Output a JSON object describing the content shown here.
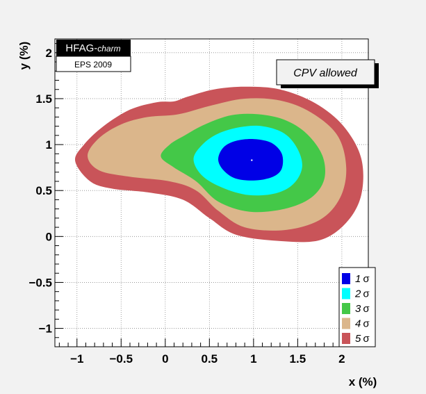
{
  "chart_data": {
    "type": "contour",
    "xlabel": "x (%)",
    "ylabel": "y (%)",
    "xlim": [
      -1.25,
      2.3
    ],
    "ylim": [
      -1.2,
      2.15
    ],
    "x_ticks": [
      "−1",
      "−0.5",
      "0",
      "0.5",
      "1",
      "1.5",
      "2"
    ],
    "x_tick_values": [
      -1,
      -0.5,
      0,
      0.5,
      1,
      1.5,
      2
    ],
    "y_ticks": [
      "−1",
      "−0.5",
      "0",
      "0.5",
      "1",
      "1.5",
      "2"
    ],
    "y_tick_values": [
      -1,
      -0.5,
      0,
      0.5,
      1,
      1.5,
      2
    ],
    "grid": true,
    "badge_title": "HFAG-",
    "badge_title_italic": "charm",
    "badge_subtitle": "EPS 2009",
    "annotation": "CPV allowed",
    "best_fit": {
      "x": 0.98,
      "y": 0.83
    },
    "legend_position": "bottom-right",
    "legend": [
      {
        "label": "1",
        "color": "#0000e6"
      },
      {
        "label": "2",
        "color": "#00ffff"
      },
      {
        "label": "3",
        "color": "#44c848"
      },
      {
        "label": "4",
        "color": "#dbb68b"
      },
      {
        "label": "5",
        "color": "#c95459"
      }
    ],
    "sigma_symbol": "σ",
    "contours": [
      {
        "level": "5σ",
        "color": "#c95459",
        "points": [
          [
            -1.02,
            0.82
          ],
          [
            -0.92,
            1.0
          ],
          [
            -0.7,
            1.2
          ],
          [
            -0.4,
            1.38
          ],
          [
            -0.1,
            1.46
          ],
          [
            0.1,
            1.47
          ],
          [
            0.25,
            1.52
          ],
          [
            0.55,
            1.6
          ],
          [
            0.9,
            1.63
          ],
          [
            1.3,
            1.6
          ],
          [
            1.7,
            1.45
          ],
          [
            2.02,
            1.2
          ],
          [
            2.22,
            0.85
          ],
          [
            2.22,
            0.45
          ],
          [
            2.05,
            0.15
          ],
          [
            1.75,
            -0.04
          ],
          [
            1.3,
            -0.05
          ],
          [
            0.8,
            0.02
          ],
          [
            0.5,
            0.2
          ],
          [
            0.2,
            0.4
          ],
          [
            -0.2,
            0.48
          ],
          [
            -0.6,
            0.52
          ],
          [
            -0.85,
            0.6
          ]
        ]
      },
      {
        "level": "4σ",
        "color": "#dbb68b",
        "points": [
          [
            -0.88,
            0.88
          ],
          [
            -0.75,
            1.07
          ],
          [
            -0.5,
            1.22
          ],
          [
            -0.2,
            1.3
          ],
          [
            0.15,
            1.33
          ],
          [
            0.5,
            1.42
          ],
          [
            0.9,
            1.5
          ],
          [
            1.3,
            1.48
          ],
          [
            1.65,
            1.35
          ],
          [
            1.95,
            1.1
          ],
          [
            2.05,
            0.75
          ],
          [
            1.98,
            0.42
          ],
          [
            1.75,
            0.18
          ],
          [
            1.35,
            0.07
          ],
          [
            0.9,
            0.1
          ],
          [
            0.6,
            0.28
          ],
          [
            0.35,
            0.5
          ],
          [
            0.05,
            0.6
          ],
          [
            -0.4,
            0.65
          ],
          [
            -0.75,
            0.72
          ]
        ]
      },
      {
        "level": "3σ",
        "color": "#44c848",
        "points": [
          [
            -0.05,
            0.87
          ],
          [
            0.05,
            1.0
          ],
          [
            0.22,
            1.1
          ],
          [
            0.45,
            1.22
          ],
          [
            0.75,
            1.32
          ],
          [
            1.05,
            1.33
          ],
          [
            1.35,
            1.27
          ],
          [
            1.6,
            1.12
          ],
          [
            1.78,
            0.88
          ],
          [
            1.8,
            0.62
          ],
          [
            1.65,
            0.42
          ],
          [
            1.35,
            0.3
          ],
          [
            0.95,
            0.27
          ],
          [
            0.6,
            0.38
          ],
          [
            0.35,
            0.6
          ],
          [
            0.1,
            0.75
          ]
        ]
      },
      {
        "level": "2σ",
        "color": "#00ffff",
        "points": [
          [
            0.32,
            0.84
          ],
          [
            0.42,
            1.0
          ],
          [
            0.6,
            1.12
          ],
          [
            0.85,
            1.19
          ],
          [
            1.1,
            1.2
          ],
          [
            1.35,
            1.12
          ],
          [
            1.5,
            0.95
          ],
          [
            1.55,
            0.75
          ],
          [
            1.45,
            0.57
          ],
          [
            1.25,
            0.47
          ],
          [
            0.95,
            0.45
          ],
          [
            0.65,
            0.53
          ],
          [
            0.42,
            0.66
          ]
        ]
      },
      {
        "level": "1σ",
        "color": "#0000e6",
        "points": [
          [
            0.6,
            0.84
          ],
          [
            0.66,
            0.97
          ],
          [
            0.8,
            1.04
          ],
          [
            1.0,
            1.06
          ],
          [
            1.2,
            1.02
          ],
          [
            1.32,
            0.9
          ],
          [
            1.32,
            0.74
          ],
          [
            1.22,
            0.65
          ],
          [
            1.02,
            0.61
          ],
          [
            0.8,
            0.63
          ],
          [
            0.66,
            0.72
          ]
        ]
      }
    ]
  }
}
